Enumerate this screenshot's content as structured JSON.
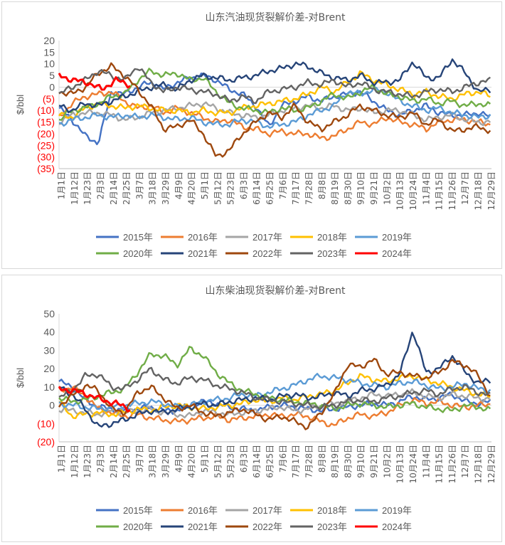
{
  "chart_data": [
    {
      "type": "line",
      "title": "山东汽油现货裂解价差-对Brent",
      "ylabel": "$/bbl",
      "ylim": [
        -35,
        20
      ],
      "yticks": [
        20,
        15,
        10,
        5,
        0,
        -5,
        -10,
        -15,
        -20,
        -25,
        -30,
        -35
      ],
      "ytick_labels": [
        "20",
        "15",
        "10",
        "5",
        "0",
        "(5)",
        "(10)",
        "(15)",
        "(20)",
        "(25)",
        "(30)",
        "(35)"
      ],
      "x_categories": [
        "1月1日",
        "1月12日",
        "1月23日",
        "2月3日",
        "2月14日",
        "2月25日",
        "3月7日",
        "3月18日",
        "3月29日",
        "4月9日",
        "4月20日",
        "5月1日",
        "5月12日",
        "5月23日",
        "6月3日",
        "6月14日",
        "6月25日",
        "7月6日",
        "7月17日",
        "7月28日",
        "8月8日",
        "8月19日",
        "8月30日",
        "9月10日",
        "9月21日",
        "10月2日",
        "10月13日",
        "10月24日",
        "11月4日",
        "11月15日",
        "11月26日",
        "12月7日",
        "12月18日",
        "12月29日"
      ],
      "legend_position": "bottom",
      "series": [
        {
          "name": "2015年",
          "color": "#4472C4",
          "values": [
            -9,
            -14,
            -21,
            -24,
            -2,
            -3,
            0,
            2,
            -1,
            2,
            4,
            5,
            3,
            -1,
            -3,
            -8,
            -17,
            -8,
            -6,
            -4,
            -6,
            -4,
            -3,
            -2,
            -6,
            -10,
            -12,
            -10,
            -8,
            -11,
            -12,
            -12,
            -11,
            -13
          ]
        },
        {
          "name": "2016年",
          "color": "#ED7D31",
          "values": [
            -13,
            -7,
            -4,
            -3,
            -2,
            -6,
            -9,
            -8,
            -11,
            -9,
            -11,
            -13,
            -15,
            -14,
            -17,
            -18,
            -20,
            -19,
            -20,
            -20,
            -22,
            -21,
            -18,
            -15,
            -16,
            -13,
            -15,
            -16,
            -18,
            -15,
            -14,
            -14,
            -15,
            -16
          ]
        },
        {
          "name": "2017年",
          "color": "#A5A5A5",
          "values": [
            -15,
            -12,
            -11,
            -11,
            -12,
            -14,
            -13,
            -11,
            -10,
            -9,
            -8,
            -7,
            -9,
            -11,
            -12,
            -13,
            -12,
            -10,
            -9,
            -8,
            -9,
            -8,
            -10,
            -9,
            -11,
            -10,
            -10,
            -12,
            -14,
            -13,
            -12,
            -14,
            -15,
            -15
          ]
        },
        {
          "name": "2018年",
          "color": "#FFC000",
          "values": [
            -12,
            -13,
            -9,
            -7,
            -8,
            -9,
            -8,
            -9,
            -10,
            -10,
            -11,
            -10,
            -11,
            -11,
            -9,
            -8,
            -7,
            -6,
            -5,
            -3,
            0,
            -2,
            2,
            6,
            3,
            1,
            -1,
            -3,
            -2,
            -4,
            -5,
            -3,
            -2,
            -4
          ]
        },
        {
          "name": "2019年",
          "color": "#5B9BD5",
          "values": [
            -16,
            -14,
            -13,
            -12,
            -13,
            -12,
            -13,
            -12,
            -13,
            -14,
            -13,
            -15,
            -16,
            -16,
            -14,
            -15,
            -17,
            -16,
            -15,
            -12,
            -10,
            -8,
            -2,
            -3,
            -1,
            -2,
            -6,
            -8,
            -10,
            -9,
            -11,
            -12,
            -13,
            -12
          ]
        },
        {
          "name": "2020年",
          "color": "#70AD47",
          "values": [
            -14,
            -10,
            -9,
            -7,
            -4,
            -3,
            3,
            7,
            5,
            6,
            3,
            4,
            -2,
            -7,
            -9,
            -10,
            -11,
            -9,
            -10,
            -9,
            -6,
            -3,
            -5,
            -2,
            0,
            -3,
            -4,
            -6,
            -5,
            -7,
            -6,
            -8,
            -7,
            -8
          ]
        },
        {
          "name": "2021年",
          "color": "#264478",
          "values": [
            -8,
            -10,
            -7,
            -8,
            -6,
            -4,
            -2,
            0,
            1,
            -1,
            3,
            5,
            4,
            3,
            4,
            5,
            7,
            8,
            10,
            9,
            6,
            4,
            3,
            5,
            2,
            2,
            3,
            11,
            4,
            4,
            12,
            6,
            -2,
            -1
          ]
        },
        {
          "name": "2022年",
          "color": "#9E480E",
          "values": [
            -2,
            -3,
            0,
            6,
            9,
            5,
            -1,
            -8,
            -18,
            -17,
            -14,
            -20,
            -30,
            -27,
            -20,
            -15,
            -11,
            -13,
            -8,
            -15,
            -18,
            -15,
            -12,
            -8,
            -10,
            -12,
            -13,
            -11,
            -16,
            -14,
            -19,
            -18,
            -17,
            -19
          ]
        },
        {
          "name": "2023年",
          "color": "#636363",
          "values": [
            -3,
            0,
            3,
            7,
            5,
            3,
            9,
            2,
            -2,
            0,
            -1,
            -2,
            -3,
            -6,
            -4,
            -6,
            -2,
            -1,
            0,
            2,
            1,
            3,
            0,
            2,
            -1,
            -2,
            -3,
            -4,
            -2,
            -1,
            -2,
            0,
            2,
            3
          ]
        },
        {
          "name": "2024年",
          "color": "#FF0000",
          "values": [
            5,
            3,
            2,
            -1,
            3,
            1
          ]
        }
      ]
    },
    {
      "type": "line",
      "title": "山东柴油现货裂解价差-对Brent",
      "ylabel": "$/bbl",
      "ylim": [
        -20,
        50
      ],
      "yticks": [
        50,
        40,
        30,
        20,
        10,
        0,
        -10,
        -20
      ],
      "ytick_labels": [
        "50",
        "40",
        "30",
        "20",
        "10",
        "0",
        "(10)",
        "(20)"
      ],
      "x_categories": [
        "1月1日",
        "1月12日",
        "1月23日",
        "2月3日",
        "2月14日",
        "2月25日",
        "3月7日",
        "3月18日",
        "3月29日",
        "4月9日",
        "4月20日",
        "5月1日",
        "5月12日",
        "5月23日",
        "6月3日",
        "6月14日",
        "6月25日",
        "7月6日",
        "7月17日",
        "7月28日",
        "8月8日",
        "8月19日",
        "8月30日",
        "9月10日",
        "9月21日",
        "10月2日",
        "10月13日",
        "10月24日",
        "11月4日",
        "11月15日",
        "11月26日",
        "12月7日",
        "12月18日",
        "12月29日"
      ],
      "legend_position": "bottom",
      "series": [
        {
          "name": "2015年",
          "color": "#4472C4",
          "values": [
            13,
            10,
            3,
            -1,
            -2,
            -3,
            -2,
            -1,
            -3,
            -3,
            0,
            2,
            1,
            -1,
            -2,
            -3,
            -1,
            0,
            -1,
            -2,
            -3,
            -2,
            -1,
            0,
            1,
            0,
            2,
            5,
            3,
            4,
            6,
            2,
            1,
            2
          ]
        },
        {
          "name": "2016年",
          "color": "#ED7D31",
          "values": [
            8,
            10,
            5,
            -2,
            -4,
            -6,
            -5,
            -7,
            -8,
            -9,
            -8,
            -7,
            -6,
            -8,
            -7,
            -6,
            -5,
            -6,
            -5,
            -6,
            -9,
            -11,
            -7,
            -5,
            -6,
            -4,
            0,
            3,
            1,
            2,
            0,
            -1,
            0,
            1
          ]
        },
        {
          "name": "2017年",
          "color": "#A5A5A5",
          "values": [
            -2,
            -3,
            -4,
            -5,
            -3,
            -4,
            -3,
            -2,
            -4,
            -5,
            -6,
            -3,
            -4,
            -5,
            -4,
            -3,
            -2,
            -1,
            -3,
            -2,
            0,
            1,
            2,
            4,
            6,
            5,
            6,
            7,
            5,
            4,
            6,
            5,
            4,
            3
          ]
        },
        {
          "name": "2018年",
          "color": "#FFC000",
          "values": [
            2,
            -6,
            -5,
            -4,
            -5,
            -4,
            -2,
            -3,
            -1,
            0,
            -1,
            -2,
            -1,
            0,
            1,
            3,
            2,
            4,
            3,
            5,
            6,
            8,
            12,
            16,
            14,
            13,
            15,
            16,
            14,
            12,
            10,
            8,
            6,
            5
          ]
        },
        {
          "name": "2019年",
          "color": "#5B9BD5",
          "values": [
            1,
            0,
            -1,
            -2,
            -1,
            0,
            1,
            2,
            1,
            -1,
            0,
            2,
            3,
            4,
            6,
            5,
            7,
            9,
            11,
            14,
            16,
            15,
            14,
            12,
            11,
            10,
            12,
            13,
            11,
            9,
            10,
            12,
            9,
            8
          ]
        },
        {
          "name": "2020年",
          "color": "#70AD47",
          "values": [
            4,
            2,
            3,
            5,
            7,
            9,
            18,
            28,
            27,
            22,
            31,
            27,
            18,
            12,
            8,
            6,
            4,
            3,
            2,
            1,
            0,
            -2,
            0,
            1,
            0,
            -1,
            0,
            1,
            -1,
            -2,
            -3,
            0,
            -1,
            -3
          ]
        },
        {
          "name": "2021年",
          "color": "#264478",
          "values": [
            10,
            6,
            -2,
            -12,
            -10,
            -8,
            -5,
            -3,
            -4,
            -2,
            -1,
            1,
            0,
            2,
            3,
            4,
            3,
            5,
            6,
            4,
            5,
            7,
            5,
            8,
            9,
            11,
            17,
            41,
            18,
            20,
            27,
            18,
            12,
            14
          ]
        },
        {
          "name": "2022年",
          "color": "#9E480E",
          "values": [
            0,
            5,
            11,
            8,
            -2,
            -4,
            7,
            10,
            4,
            -2,
            0,
            -4,
            -6,
            -4,
            -2,
            -5,
            -8,
            -6,
            -9,
            -12,
            -4,
            6,
            22,
            21,
            25,
            17,
            18,
            16,
            15,
            18,
            24,
            22,
            16,
            4
          ]
        },
        {
          "name": "2023年",
          "color": "#636363",
          "values": [
            4,
            8,
            16,
            17,
            10,
            9,
            14,
            20,
            14,
            12,
            15,
            14,
            11,
            9,
            7,
            4,
            3,
            2,
            1,
            0,
            -1,
            0,
            2,
            3,
            2,
            4,
            5,
            7,
            8,
            6,
            9,
            10,
            7,
            5
          ]
        },
        {
          "name": "2024年",
          "color": "#FF0000",
          "values": [
            9,
            8,
            6,
            3,
            1,
            -2
          ]
        }
      ]
    }
  ]
}
